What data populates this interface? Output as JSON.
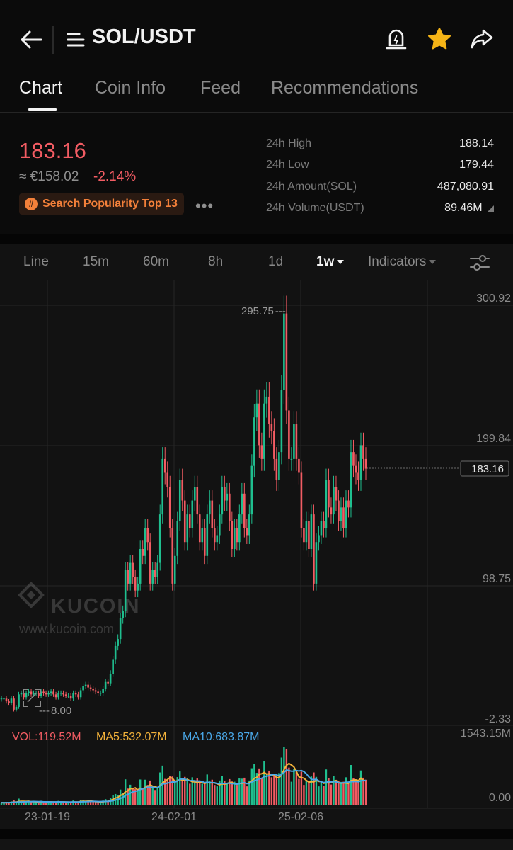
{
  "header": {
    "pair": "SOL/USDT"
  },
  "tabs": [
    {
      "label": "Chart",
      "active": true
    },
    {
      "label": "Coin Info",
      "active": false
    },
    {
      "label": "Feed",
      "active": false
    },
    {
      "label": "Recommendations",
      "active": false
    }
  ],
  "ticker": {
    "price": "183.16",
    "fiat": "≈ €158.02",
    "change": "-2.14%",
    "badge": "Search Popularity Top 13",
    "stats": [
      {
        "label": "24h High",
        "value": "188.14"
      },
      {
        "label": "24h Low",
        "value": "179.44"
      },
      {
        "label": "24h Amount(SOL)",
        "value": "487,080.91"
      },
      {
        "label": "24h Volume(USDT)",
        "value": "89.46M"
      }
    ]
  },
  "intervals": [
    {
      "label": "Line",
      "active": false
    },
    {
      "label": "15m",
      "active": false
    },
    {
      "label": "60m",
      "active": false
    },
    {
      "label": "8h",
      "active": false
    },
    {
      "label": "1d",
      "active": false
    },
    {
      "label": "1w",
      "active": true
    },
    {
      "label": "Indicators",
      "active": false
    }
  ],
  "watermark": {
    "brand": "KUCOIN",
    "url": "www.kucoin.com"
  },
  "colors": {
    "up": "#1fbf8f",
    "down": "#f25c63",
    "ma5": "#f3b23a",
    "ma10": "#4aa8e8",
    "accent": "#f3803a"
  },
  "chart_data": {
    "type": "candlestick",
    "y_axis_labels": [
      "300.92",
      "199.84",
      "98.75",
      "-2.33"
    ],
    "ylim": [
      -2.33,
      300.92
    ],
    "x_tick_labels": [
      "23-01-19",
      "24-02-01",
      "25-02-06"
    ],
    "current_price_label": "183.16",
    "max_marker": "295.75",
    "min_marker": "8.00",
    "candles_weekly_close": [
      17,
      17,
      15,
      14,
      17,
      9,
      11,
      20,
      21,
      18,
      21,
      22,
      20,
      21,
      21,
      19,
      22,
      21,
      20,
      21,
      22,
      20,
      18,
      21,
      21,
      20,
      19,
      19,
      17,
      21,
      20,
      18,
      23,
      26,
      27,
      25,
      24,
      23,
      22,
      21,
      21,
      24,
      29,
      28,
      35,
      45,
      55,
      60,
      75,
      80,
      110,
      100,
      115,
      105,
      95,
      100,
      125,
      120,
      140,
      130,
      100,
      110,
      105,
      115,
      150,
      190,
      180,
      170,
      140,
      100,
      120,
      145,
      175,
      160,
      130,
      150,
      140,
      160,
      170,
      150,
      130,
      140,
      120,
      150,
      160,
      140,
      130,
      135,
      150,
      170,
      160,
      165,
      145,
      125,
      140,
      130,
      150,
      165,
      140,
      135,
      150,
      185,
      220,
      230,
      200,
      190,
      230,
      235,
      215,
      210,
      190,
      175,
      195,
      240,
      295,
      225,
      190,
      190,
      215,
      190,
      180,
      140,
      130,
      145,
      125,
      150,
      100,
      130,
      135,
      145,
      140,
      175,
      155,
      150,
      170,
      160,
      145,
      155,
      140,
      160,
      155,
      195,
      185,
      180,
      175,
      200,
      190,
      183
    ],
    "volume": {
      "vol_label": "VOL:119.52M",
      "ma5_label": "MA5:532.07M",
      "ma10_label": "MA10:683.87M",
      "y_axis_labels": [
        "1543.15M",
        "0.00"
      ]
    }
  }
}
